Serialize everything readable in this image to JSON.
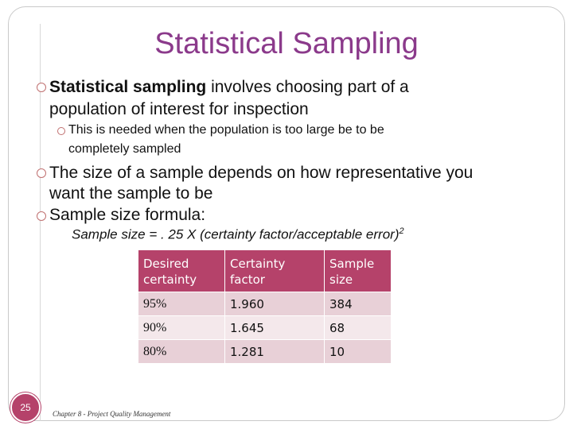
{
  "slide": {
    "title": "Statistical Sampling",
    "bullets": [
      {
        "bold": "Statistical sampling",
        "rest": " involves choosing part of a",
        "cont": "population of interest for inspection"
      },
      {
        "sub": "This is needed when the population is too large be to be",
        "sub_cont": "completely sampled"
      },
      {
        "text": "The size of a sample depends on how representative you",
        "cont": "want the sample to be"
      },
      {
        "text": "Sample size formula:"
      }
    ],
    "formula": "Sample size = . 25 X (certainty factor/acceptable error)",
    "formula_exp": "2",
    "table": {
      "headers": [
        [
          "Desired",
          "certainty"
        ],
        [
          "Certainty",
          "factor"
        ],
        [
          "Sample",
          "size"
        ]
      ],
      "rows": [
        [
          "95%",
          "1.960",
          "384"
        ],
        [
          "90%",
          "1.645",
          "68"
        ],
        [
          "80%",
          "1.281",
          "10"
        ]
      ]
    },
    "slide_number": "25",
    "footer": "Chapter 8 - Project Quality Management"
  }
}
